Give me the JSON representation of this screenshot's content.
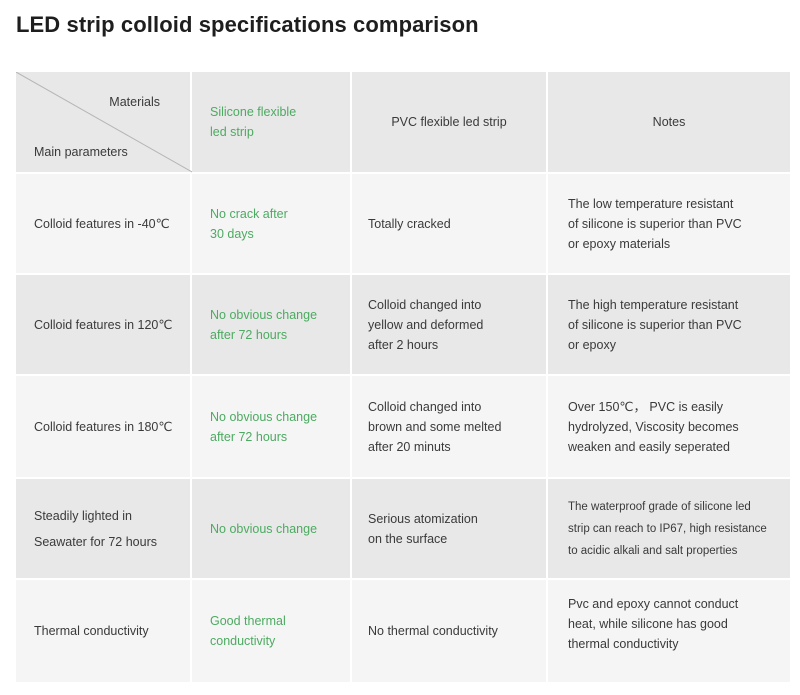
{
  "title": "LED strip colloid specifications comparison",
  "header": {
    "materials": "Materials",
    "main_parameters": "Main parameters",
    "silicone": "Silicone flexible\nled strip",
    "pvc": "PVC flexible led strip",
    "notes": "Notes"
  },
  "rows": [
    {
      "parameter": "Colloid features in -40℃",
      "silicone": "No crack after\n30 days",
      "pvc": "Totally cracked",
      "notes": "The low temperature resistant\nof silicone is superior than PVC\nor epoxy materials"
    },
    {
      "parameter": "Colloid features in 120℃",
      "silicone": "No obvious change\nafter 72 hours",
      "pvc": "Colloid changed into\nyellow and deformed\nafter 2 hours",
      "notes": "The high temperature resistant\nof silicone is superior than  PVC\nor epoxy"
    },
    {
      "parameter": "Colloid features in 180℃",
      "silicone": "No obvious change\nafter 72 hours",
      "pvc": "Colloid changed into\nbrown and some melted\nafter 20 minuts",
      "notes": "Over 150℃， PVC is easily\nhydrolyzed, Viscosity becomes\nweaken and easily seperated"
    },
    {
      "parameter": "Steadily lighted in\nSeawater for 72 hours",
      "silicone": "No obvious change",
      "pvc": "Serious atomization\non the surface",
      "notes": "The waterproof grade of silicone led\nstrip can reach to IP67, high resistance\nto acidic alkali and salt properties"
    },
    {
      "parameter": "Thermal conductivity",
      "silicone": "Good thermal\nconductivity",
      "pvc": "No thermal conductivity",
      "notes": "Pvc and epoxy cannot conduct\nheat, while silicone has good\nthermal conductivity"
    }
  ]
}
